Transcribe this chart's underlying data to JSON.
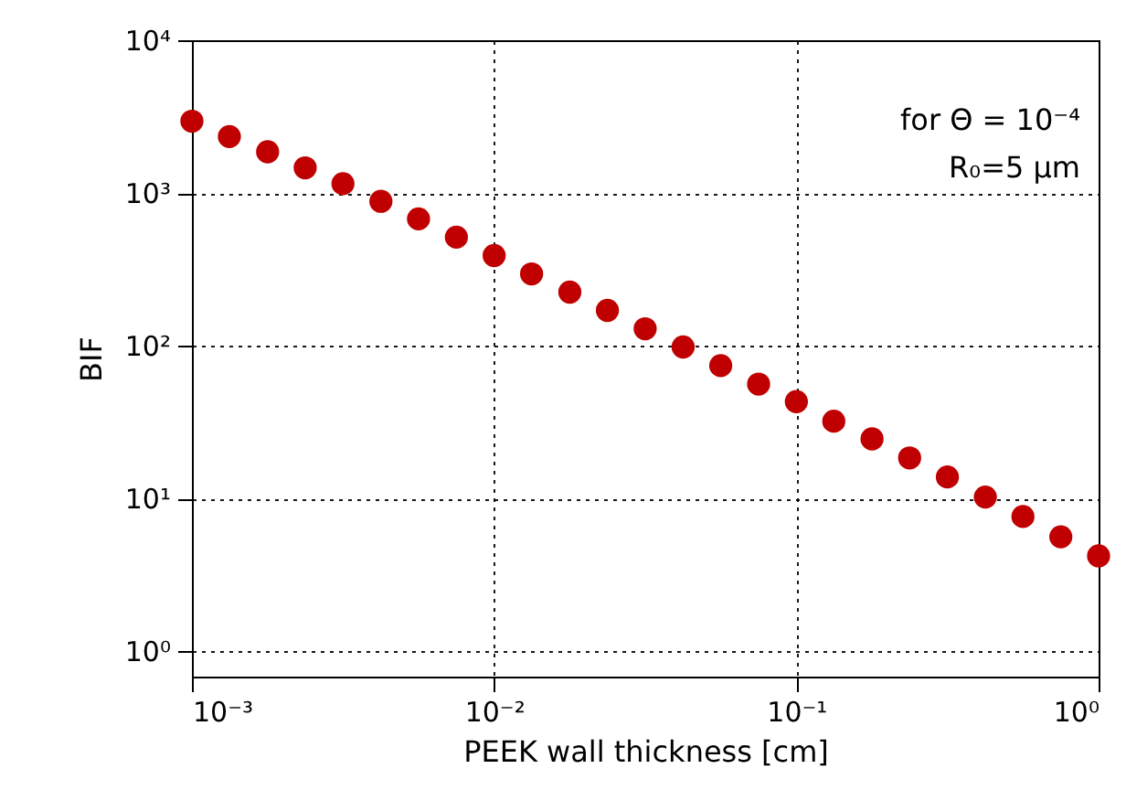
{
  "chart_data": {
    "type": "scatter",
    "xlabel": "PEEK wall thickness [cm]",
    "ylabel": "BIF",
    "log": "xy",
    "grid": true,
    "marker": "circle",
    "x": [
      0.001,
      0.00133,
      0.00178,
      0.00237,
      0.00316,
      0.00422,
      0.00562,
      0.0075,
      0.01,
      0.0133,
      0.0178,
      0.0237,
      0.0316,
      0.0422,
      0.0562,
      0.075,
      0.1,
      0.133,
      0.178,
      0.237,
      0.316,
      0.422,
      0.562,
      0.75,
      1
    ],
    "series": [
      {
        "color": "#c00000",
        "values": [
          2950,
          2340,
          1860,
          1460,
          1150,
          881,
          676,
          513,
          389,
          295,
          224,
          170,
          129,
          98,
          74,
          56,
          43,
          32,
          24.5,
          18.4,
          13.8,
          10.2,
          7.6,
          5.6,
          4.2
        ]
      }
    ],
    "xlim": [
      0.001,
      1
    ],
    "ylim": [
      0.68,
      10000
    ],
    "xticks": [
      {
        "value": 0.001,
        "label": "10⁻³"
      },
      {
        "value": 0.01,
        "label": "10⁻²"
      },
      {
        "value": 0.1,
        "label": "10⁻¹"
      },
      {
        "value": 1,
        "label": "10⁰"
      }
    ],
    "yticks": [
      {
        "value": 1,
        "label": "10⁰"
      },
      {
        "value": 10,
        "label": "10¹"
      },
      {
        "value": 100,
        "label": "10²"
      },
      {
        "value": 1000,
        "label": "10³"
      },
      {
        "value": 10000,
        "label": "10⁴"
      }
    ],
    "annotations": [
      "for Θ = 10⁻⁴",
      "R₀=5 μm"
    ]
  }
}
